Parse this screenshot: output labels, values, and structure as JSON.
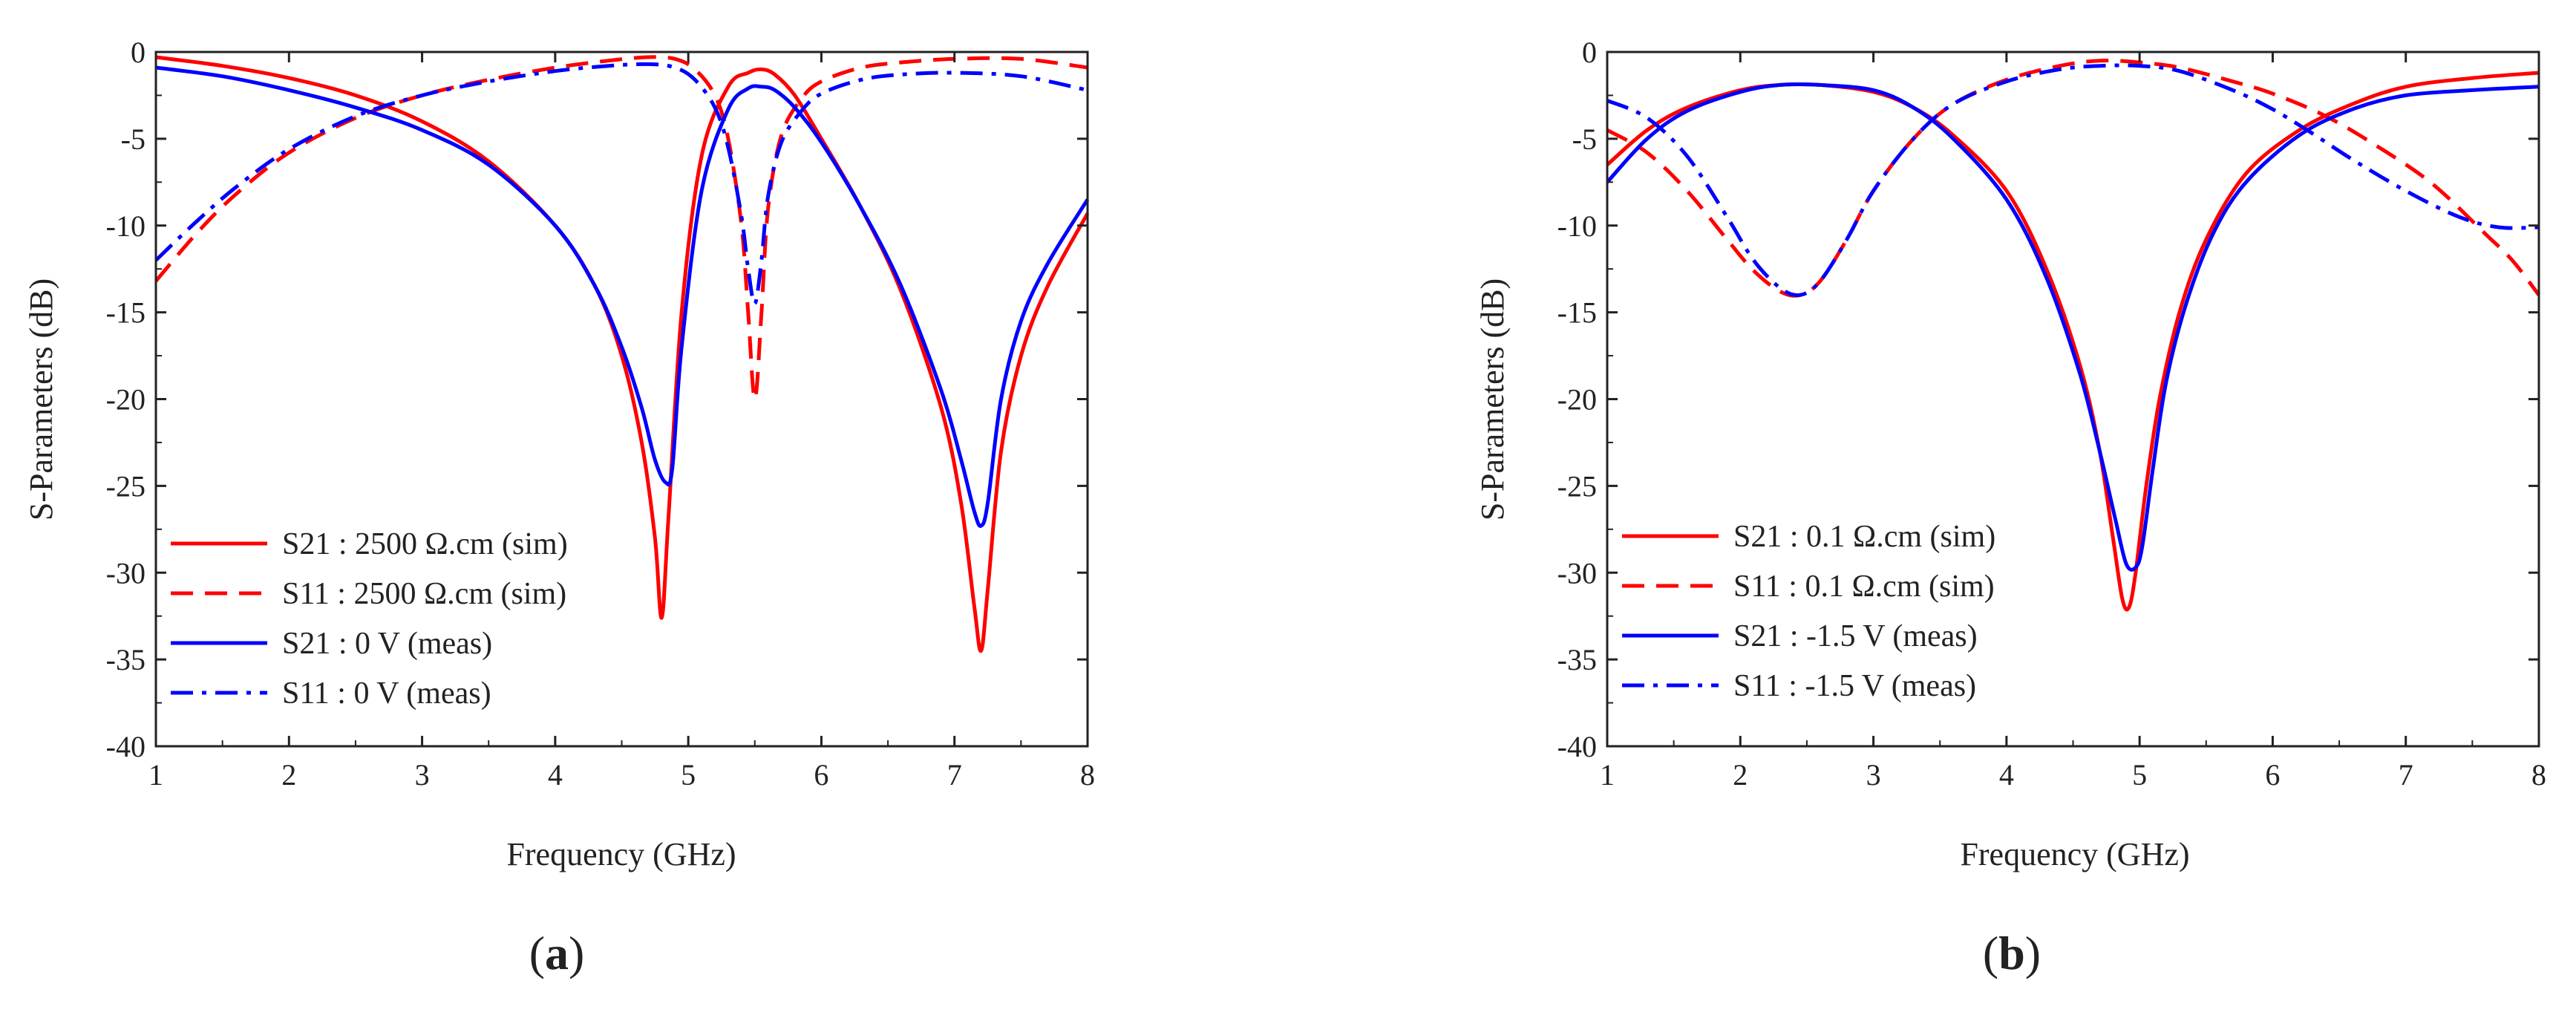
{
  "chart_data": [
    {
      "type": "line",
      "panel_label": "a",
      "xlabel": "Frequency (GHz)",
      "ylabel": "S-Parameters (dB)",
      "xlim": [
        1,
        8
      ],
      "ylim": [
        -40,
        0
      ],
      "xticks": [
        "1",
        "2",
        "3",
        "4",
        "5",
        "6",
        "7",
        "8"
      ],
      "yticks": [
        "0",
        "-5",
        "-10",
        "-15",
        "-20",
        "-25",
        "-30",
        "-35",
        "-40"
      ],
      "legend_position": "bottom-left",
      "series": [
        {
          "name": "S21 : 2500 Ω.cm (sim)",
          "color": "#ff0000",
          "dash": "solid",
          "x": [
            1,
            1.5,
            2,
            2.5,
            3,
            3.5,
            4,
            4.3,
            4.5,
            4.65,
            4.75,
            4.8,
            4.85,
            4.95,
            5.1,
            5.3,
            5.45,
            5.55,
            5.65,
            5.8,
            6,
            6.3,
            6.6,
            6.9,
            7.05,
            7.15,
            7.2,
            7.25,
            7.35,
            7.5,
            7.7,
            8
          ],
          "y": [
            -0.3,
            -0.8,
            -1.5,
            -2.5,
            -4,
            -6.3,
            -10,
            -13.5,
            -17.5,
            -22.5,
            -28,
            -32.6,
            -27,
            -15,
            -6,
            -2,
            -1.2,
            -1,
            -1.3,
            -2.5,
            -5,
            -9,
            -13.8,
            -20.5,
            -26,
            -32,
            -34.5,
            -31,
            -23,
            -17.5,
            -13.5,
            -9.3
          ]
        },
        {
          "name": "S11 : 2500 Ω.cm (sim)",
          "color": "#ff0000",
          "dash": "dashed",
          "x": [
            1,
            1.3,
            1.6,
            2,
            2.5,
            3,
            3.5,
            4,
            4.4,
            4.7,
            4.9,
            5.05,
            5.2,
            5.3,
            5.4,
            5.45,
            5.5,
            5.55,
            5.6,
            5.7,
            5.85,
            6,
            6.3,
            6.6,
            7,
            7.5,
            8
          ],
          "y": [
            -13.2,
            -10.5,
            -8.2,
            -5.8,
            -3.8,
            -2.5,
            -1.6,
            -0.9,
            -0.5,
            -0.3,
            -0.4,
            -1,
            -2.5,
            -5,
            -10,
            -15,
            -20,
            -15,
            -9,
            -4.8,
            -2.7,
            -1.7,
            -0.9,
            -0.6,
            -0.4,
            -0.4,
            -0.9
          ]
        },
        {
          "name": "S21 : 0 V (meas)",
          "color": "#0000ff",
          "dash": "solid",
          "x": [
            1,
            1.5,
            2,
            2.5,
            3,
            3.5,
            4,
            4.3,
            4.5,
            4.65,
            4.75,
            4.83,
            4.88,
            4.95,
            5.1,
            5.3,
            5.45,
            5.55,
            5.65,
            5.8,
            6,
            6.3,
            6.6,
            6.9,
            7.05,
            7.15,
            7.2,
            7.25,
            7.35,
            7.5,
            7.7,
            8
          ],
          "y": [
            -0.9,
            -1.4,
            -2.2,
            -3.2,
            -4.5,
            -6.5,
            -10,
            -13.5,
            -17,
            -20.5,
            -23.5,
            -24.8,
            -24,
            -17,
            -8,
            -3.3,
            -2.1,
            -2,
            -2.2,
            -3.2,
            -5.2,
            -9,
            -13.5,
            -19.5,
            -23.5,
            -26.5,
            -27.3,
            -26,
            -20,
            -15.5,
            -12.2,
            -8.5
          ]
        },
        {
          "name": "S11 : 0 V (meas)",
          "color": "#0000ff",
          "dash": "dashdot",
          "x": [
            1,
            1.3,
            1.6,
            2,
            2.5,
            3,
            3.5,
            4,
            4.4,
            4.7,
            4.9,
            5.05,
            5.2,
            5.3,
            5.4,
            5.45,
            5.5,
            5.55,
            5.6,
            5.7,
            5.85,
            6,
            6.3,
            6.6,
            7,
            7.5,
            8
          ],
          "y": [
            -12,
            -9.8,
            -7.8,
            -5.6,
            -3.7,
            -2.5,
            -1.7,
            -1.1,
            -0.8,
            -0.7,
            -0.9,
            -1.6,
            -3.2,
            -5.5,
            -9.5,
            -12.5,
            -14.5,
            -12,
            -8.3,
            -5.2,
            -3.4,
            -2.4,
            -1.6,
            -1.3,
            -1.2,
            -1.4,
            -2.2
          ]
        }
      ]
    },
    {
      "type": "line",
      "panel_label": "b",
      "xlabel": "Frequency (GHz)",
      "ylabel": "S-Parameters (dB)",
      "xlim": [
        1,
        8
      ],
      "ylim": [
        -40,
        0
      ],
      "xticks": [
        "1",
        "2",
        "3",
        "4",
        "5",
        "6",
        "7",
        "8"
      ],
      "yticks": [
        "0",
        "-5",
        "-10",
        "-15",
        "-20",
        "-25",
        "-30",
        "-35",
        "-40"
      ],
      "legend_position": "bottom-left",
      "series": [
        {
          "name": "S21 : 0.1 Ω.cm (sim)",
          "color": "#ff0000",
          "dash": "solid",
          "x": [
            1,
            1.3,
            1.6,
            2,
            2.3,
            2.6,
            3,
            3.3,
            3.6,
            4,
            4.3,
            4.55,
            4.7,
            4.8,
            4.87,
            4.92,
            4.97,
            5.05,
            5.15,
            5.3,
            5.5,
            5.8,
            6.2,
            6.6,
            7,
            7.5,
            8
          ],
          "y": [
            -6.5,
            -4.5,
            -3.2,
            -2.2,
            -1.9,
            -1.9,
            -2.3,
            -3.2,
            -4.8,
            -8,
            -12.5,
            -18,
            -23,
            -28,
            -31.5,
            -32,
            -30,
            -25,
            -20,
            -15,
            -10.8,
            -7,
            -4.5,
            -3,
            -2,
            -1.5,
            -1.2
          ]
        },
        {
          "name": "S11 : 0.1 Ω.cm (sim)",
          "color": "#ff0000",
          "dash": "dashed",
          "x": [
            1,
            1.3,
            1.6,
            1.9,
            2.1,
            2.3,
            2.45,
            2.6,
            2.8,
            3,
            3.3,
            3.6,
            4,
            4.4,
            4.7,
            5,
            5.3,
            5.7,
            6,
            6.4,
            6.8,
            7.2,
            7.6,
            7.8,
            8
          ],
          "y": [
            -4.5,
            -5.8,
            -8,
            -10.8,
            -12.6,
            -13.8,
            -14,
            -13.2,
            -10.8,
            -8,
            -5,
            -3,
            -1.6,
            -0.8,
            -0.5,
            -0.6,
            -0.9,
            -1.7,
            -2.4,
            -3.7,
            -5.5,
            -7.6,
            -10.5,
            -12,
            -14
          ]
        },
        {
          "name": "S21 : -1.5 V (meas)",
          "color": "#0000ff",
          "dash": "solid",
          "x": [
            1,
            1.3,
            1.6,
            2,
            2.3,
            2.6,
            3,
            3.3,
            3.6,
            4,
            4.3,
            4.55,
            4.7,
            4.82,
            4.9,
            4.97,
            5.02,
            5.1,
            5.2,
            5.35,
            5.55,
            5.8,
            6.2,
            6.6,
            7,
            7.5,
            8
          ],
          "y": [
            -7.5,
            -5,
            -3.4,
            -2.3,
            -1.9,
            -1.9,
            -2.2,
            -3.2,
            -5,
            -8.5,
            -13,
            -18.5,
            -23,
            -27,
            -29.5,
            -29.7,
            -28.5,
            -24,
            -19,
            -14.5,
            -10.5,
            -7.5,
            -4.8,
            -3.3,
            -2.5,
            -2.2,
            -2
          ]
        },
        {
          "name": "S11 : -1.5 V (meas)",
          "color": "#0000ff",
          "dash": "dashdot",
          "x": [
            1,
            1.3,
            1.6,
            1.9,
            2.1,
            2.3,
            2.45,
            2.6,
            2.8,
            3,
            3.3,
            3.6,
            4,
            4.4,
            4.7,
            5,
            5.3,
            5.7,
            6,
            6.3,
            6.6,
            7,
            7.4,
            7.7,
            8
          ],
          "y": [
            -2.8,
            -3.8,
            -6,
            -9.5,
            -12,
            -13.6,
            -14,
            -13.2,
            -10.8,
            -8,
            -5,
            -3,
            -1.7,
            -1,
            -0.8,
            -0.8,
            -1.1,
            -2.2,
            -3.3,
            -4.7,
            -6.2,
            -8,
            -9.5,
            -10.1,
            -10.1
          ]
        }
      ]
    }
  ]
}
